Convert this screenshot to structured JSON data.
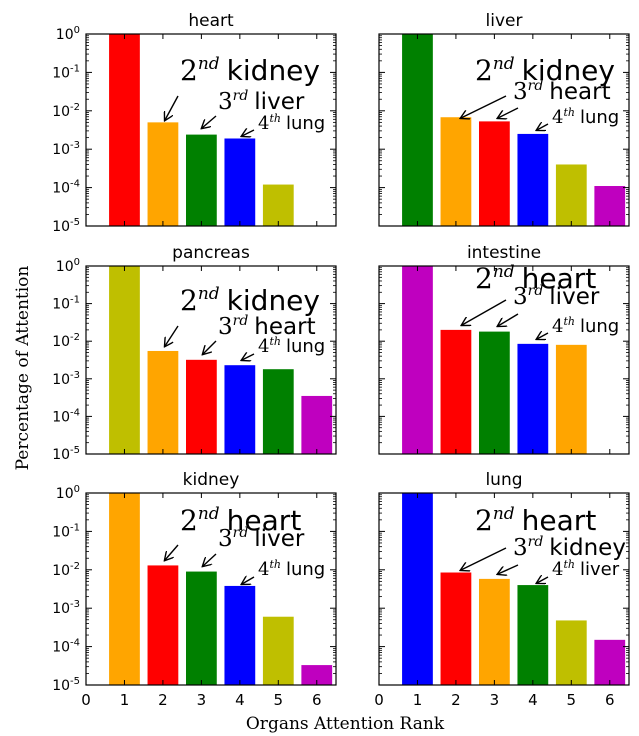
{
  "figure": {
    "xlabel": "Organs Attention Rank",
    "ylabel": "Percentage of Attention"
  },
  "colors": {
    "heart": "#ff0000",
    "liver": "#008000",
    "kidney": "#ffa500",
    "lung": "#0000ff",
    "pancreas": "#bfbf00",
    "intestine": "#bf00bf"
  },
  "chart_data": [
    {
      "type": "bar",
      "title": "heart",
      "yscale": "log",
      "ylim": [
        1e-05,
        1
      ],
      "xlim": [
        0,
        6.5
      ],
      "xticks": [
        "0",
        "1",
        "2",
        "3",
        "4",
        "5",
        "6"
      ],
      "yticks": [
        "10-5",
        "10-4",
        "10-3",
        "10-2",
        "10-1",
        "100"
      ],
      "ranks": [
        1,
        2,
        3,
        4,
        5,
        6
      ],
      "values": [
        1.0,
        0.005,
        0.0024,
        0.0019,
        0.00012,
        0.0
      ],
      "organs": [
        "heart",
        "kidney",
        "liver",
        "lung",
        "pancreas",
        "intestine"
      ],
      "annotations": [
        {
          "ord": "2",
          "sup": "nd",
          "name": "kidney"
        },
        {
          "ord": "3",
          "sup": "rd",
          "name": "liver"
        },
        {
          "ord": "4",
          "sup": "th",
          "name": "lung"
        }
      ]
    },
    {
      "type": "bar",
      "title": "liver",
      "yscale": "log",
      "ylim": [
        1e-05,
        1
      ],
      "xlim": [
        0,
        6.5
      ],
      "xticks": [
        "0",
        "1",
        "2",
        "3",
        "4",
        "5",
        "6"
      ],
      "yticks": [
        "10-5",
        "10-4",
        "10-3",
        "10-2",
        "10-1",
        "100"
      ],
      "ranks": [
        1,
        2,
        3,
        4,
        5,
        6
      ],
      "values": [
        1.0,
        0.0068,
        0.0053,
        0.0025,
        0.0004,
        0.00011
      ],
      "organs": [
        "liver",
        "kidney",
        "heart",
        "lung",
        "pancreas",
        "intestine"
      ],
      "annotations": [
        {
          "ord": "2",
          "sup": "nd",
          "name": "kidney"
        },
        {
          "ord": "3",
          "sup": "rd",
          "name": "heart"
        },
        {
          "ord": "4",
          "sup": "th",
          "name": "lung"
        }
      ]
    },
    {
      "type": "bar",
      "title": "pancreas",
      "yscale": "log",
      "ylim": [
        1e-05,
        1
      ],
      "xlim": [
        0,
        6.5
      ],
      "xticks": [
        "0",
        "1",
        "2",
        "3",
        "4",
        "5",
        "6"
      ],
      "yticks": [
        "10-5",
        "10-4",
        "10-3",
        "10-2",
        "10-1",
        "100"
      ],
      "ranks": [
        1,
        2,
        3,
        4,
        5,
        6
      ],
      "values": [
        1.0,
        0.0055,
        0.0032,
        0.0023,
        0.0018,
        0.00035
      ],
      "organs": [
        "pancreas",
        "kidney",
        "heart",
        "lung",
        "liver",
        "intestine"
      ],
      "annotations": [
        {
          "ord": "2",
          "sup": "nd",
          "name": "kidney"
        },
        {
          "ord": "3",
          "sup": "rd",
          "name": "heart"
        },
        {
          "ord": "4",
          "sup": "th",
          "name": "lung"
        }
      ]
    },
    {
      "type": "bar",
      "title": "intestine",
      "yscale": "log",
      "ylim": [
        1e-05,
        1
      ],
      "xlim": [
        0,
        6.5
      ],
      "xticks": [
        "0",
        "1",
        "2",
        "3",
        "4",
        "5",
        "6"
      ],
      "yticks": [
        "10-5",
        "10-4",
        "10-3",
        "10-2",
        "10-1",
        "100"
      ],
      "ranks": [
        1,
        2,
        3,
        4,
        5,
        6
      ],
      "values": [
        1.0,
        0.02,
        0.018,
        0.0085,
        0.008,
        0.0
      ],
      "organs": [
        "intestine",
        "heart",
        "liver",
        "lung",
        "kidney",
        "pancreas"
      ],
      "annotations": [
        {
          "ord": "2",
          "sup": "nd",
          "name": "heart"
        },
        {
          "ord": "3",
          "sup": "rd",
          "name": "liver"
        },
        {
          "ord": "4",
          "sup": "th",
          "name": "lung"
        }
      ]
    },
    {
      "type": "bar",
      "title": "kidney",
      "yscale": "log",
      "ylim": [
        1e-05,
        1
      ],
      "xlim": [
        0,
        6.5
      ],
      "xticks": [
        "0",
        "1",
        "2",
        "3",
        "4",
        "5",
        "6"
      ],
      "yticks": [
        "10-5",
        "10-4",
        "10-3",
        "10-2",
        "10-1",
        "100"
      ],
      "ranks": [
        1,
        2,
        3,
        4,
        5,
        6
      ],
      "values": [
        1.0,
        0.013,
        0.009,
        0.0038,
        0.0006,
        3.3e-05
      ],
      "organs": [
        "kidney",
        "heart",
        "liver",
        "lung",
        "pancreas",
        "intestine"
      ],
      "annotations": [
        {
          "ord": "2",
          "sup": "nd",
          "name": "heart"
        },
        {
          "ord": "3",
          "sup": "rd",
          "name": "liver"
        },
        {
          "ord": "4",
          "sup": "th",
          "name": "lung"
        }
      ]
    },
    {
      "type": "bar",
      "title": "lung",
      "yscale": "log",
      "ylim": [
        1e-05,
        1
      ],
      "xlim": [
        0,
        6.5
      ],
      "xticks": [
        "0",
        "1",
        "2",
        "3",
        "4",
        "5",
        "6"
      ],
      "yticks": [
        "10-5",
        "10-4",
        "10-3",
        "10-2",
        "10-1",
        "100"
      ],
      "ranks": [
        1,
        2,
        3,
        4,
        5,
        6
      ],
      "values": [
        1.0,
        0.0085,
        0.0058,
        0.004,
        0.00048,
        0.00015
      ],
      "organs": [
        "lung",
        "heart",
        "kidney",
        "liver",
        "pancreas",
        "intestine"
      ],
      "annotations": [
        {
          "ord": "2",
          "sup": "nd",
          "name": "heart"
        },
        {
          "ord": "3",
          "sup": "rd",
          "name": "kidney"
        },
        {
          "ord": "4",
          "sup": "th",
          "name": "liver"
        }
      ]
    }
  ]
}
